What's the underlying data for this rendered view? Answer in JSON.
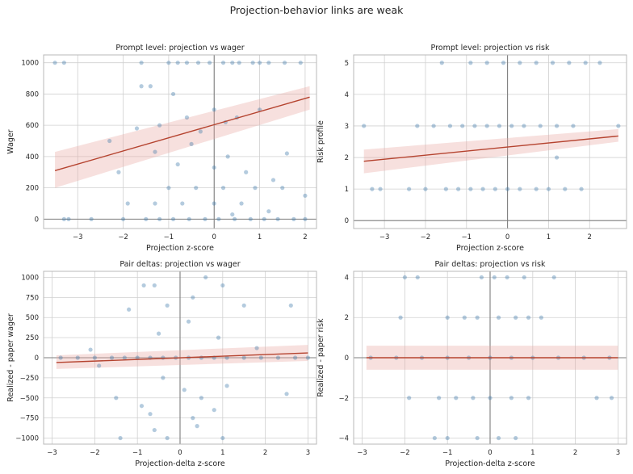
{
  "figure": {
    "title": "Projection-behavior links are weak",
    "colors": {
      "points": "#3a77a8",
      "fit_line": "#b5432f",
      "ci_band": "#e8a7a0",
      "grid": "#d0d0d0",
      "zero_line": "#7f7f7f",
      "frame": "#b8b8b8"
    }
  },
  "chart_data": [
    {
      "type": "scatter",
      "title": "Prompt level: projection vs wager",
      "xlabel": "Projection z-score",
      "ylabel": "Wager",
      "xlim": [
        -3.75,
        2.25
      ],
      "ylim": [
        -60,
        1050
      ],
      "xticks": [
        -3,
        -2,
        -1,
        0,
        1,
        2
      ],
      "xtick_labels": [
        "−3",
        "−2",
        "−1",
        "0",
        "1",
        "2"
      ],
      "yticks": [
        0,
        200,
        400,
        600,
        800,
        1000
      ],
      "ytick_labels": [
        "0",
        "200",
        "400",
        "600",
        "800",
        "1000"
      ],
      "grid": true,
      "zero_lines": true,
      "fit": {
        "x": [
          -3.5,
          2.1
        ],
        "y": [
          310,
          780
        ],
        "ci_lower": [
          200,
          700
        ],
        "ci_upper": [
          430,
          850
        ]
      },
      "points": [
        {
          "x": -3.5,
          "y": 1000
        },
        {
          "x": -3.3,
          "y": 1000
        },
        {
          "x": -1.6,
          "y": 1000
        },
        {
          "x": -1.0,
          "y": 1000
        },
        {
          "x": -0.6,
          "y": 1000
        },
        {
          "x": -0.35,
          "y": 1000
        },
        {
          "x": -0.1,
          "y": 1000
        },
        {
          "x": 0.2,
          "y": 1000
        },
        {
          "x": 0.55,
          "y": 1000
        },
        {
          "x": 0.85,
          "y": 1000
        },
        {
          "x": 1.2,
          "y": 1000
        },
        {
          "x": 1.55,
          "y": 1000
        },
        {
          "x": 1.9,
          "y": 1000
        },
        {
          "x": -0.8,
          "y": 1000
        },
        {
          "x": 0.4,
          "y": 1000
        },
        {
          "x": 1.0,
          "y": 1000
        },
        {
          "x": -3.3,
          "y": 0
        },
        {
          "x": -3.2,
          "y": 0
        },
        {
          "x": -2.7,
          "y": 0
        },
        {
          "x": -2.0,
          "y": 0
        },
        {
          "x": -1.5,
          "y": 0
        },
        {
          "x": -1.2,
          "y": 0
        },
        {
          "x": -0.9,
          "y": 0
        },
        {
          "x": -0.55,
          "y": 0
        },
        {
          "x": -0.2,
          "y": 0
        },
        {
          "x": 0.1,
          "y": 0
        },
        {
          "x": 0.45,
          "y": 0
        },
        {
          "x": 0.8,
          "y": 0
        },
        {
          "x": 1.1,
          "y": 0
        },
        {
          "x": 1.4,
          "y": 0
        },
        {
          "x": 1.75,
          "y": 0
        },
        {
          "x": 2.0,
          "y": 0
        },
        {
          "x": -1.6,
          "y": 850
        },
        {
          "x": -1.4,
          "y": 850
        },
        {
          "x": -0.9,
          "y": 800
        },
        {
          "x": -1.7,
          "y": 580
        },
        {
          "x": -1.2,
          "y": 600
        },
        {
          "x": -0.6,
          "y": 650
        },
        {
          "x": 0.0,
          "y": 700
        },
        {
          "x": 0.5,
          "y": 650
        },
        {
          "x": 1.0,
          "y": 700
        },
        {
          "x": -0.3,
          "y": 560
        },
        {
          "x": 0.25,
          "y": 620
        },
        {
          "x": -2.3,
          "y": 500
        },
        {
          "x": -1.3,
          "y": 430
        },
        {
          "x": -0.5,
          "y": 480
        },
        {
          "x": 0.3,
          "y": 400
        },
        {
          "x": 1.6,
          "y": 420
        },
        {
          "x": -2.1,
          "y": 300
        },
        {
          "x": -0.8,
          "y": 350
        },
        {
          "x": 0.0,
          "y": 330
        },
        {
          "x": 0.7,
          "y": 300
        },
        {
          "x": 1.3,
          "y": 250
        },
        {
          "x": -1.0,
          "y": 200
        },
        {
          "x": -0.4,
          "y": 200
        },
        {
          "x": 0.2,
          "y": 200
        },
        {
          "x": 0.9,
          "y": 200
        },
        {
          "x": 1.5,
          "y": 200
        },
        {
          "x": 2.0,
          "y": 150
        },
        {
          "x": -1.9,
          "y": 100
        },
        {
          "x": -1.3,
          "y": 100
        },
        {
          "x": -0.7,
          "y": 100
        },
        {
          "x": 0.0,
          "y": 100
        },
        {
          "x": 0.6,
          "y": 100
        },
        {
          "x": 1.2,
          "y": 50
        },
        {
          "x": 0.4,
          "y": 30
        }
      ]
    },
    {
      "type": "scatter",
      "title": "Prompt level: projection vs risk",
      "xlabel": "Projection z-score",
      "ylabel": "Risk profile",
      "xlim": [
        -3.75,
        2.9
      ],
      "ylim": [
        -0.25,
        5.25
      ],
      "xticks": [
        -3,
        -2,
        -1,
        0,
        1,
        2
      ],
      "xtick_labels": [
        "−3",
        "−2",
        "−1",
        "0",
        "1",
        "2"
      ],
      "yticks": [
        0,
        1,
        2,
        3,
        4,
        5
      ],
      "ytick_labels": [
        "0",
        "1",
        "2",
        "3",
        "4",
        "5"
      ],
      "grid": true,
      "zero_lines": true,
      "fit": {
        "x": [
          -3.5,
          2.7
        ],
        "y": [
          1.88,
          2.68
        ],
        "ci_lower": [
          1.5,
          2.5
        ],
        "ci_upper": [
          2.25,
          2.9
        ]
      },
      "points": [
        {
          "x": -1.6,
          "y": 5
        },
        {
          "x": -0.9,
          "y": 5
        },
        {
          "x": -0.5,
          "y": 5
        },
        {
          "x": -0.1,
          "y": 5
        },
        {
          "x": 0.3,
          "y": 5
        },
        {
          "x": 0.7,
          "y": 5
        },
        {
          "x": 1.1,
          "y": 5
        },
        {
          "x": 1.5,
          "y": 5
        },
        {
          "x": 1.9,
          "y": 5
        },
        {
          "x": 2.25,
          "y": 5
        },
        {
          "x": -3.5,
          "y": 3
        },
        {
          "x": -2.2,
          "y": 3
        },
        {
          "x": -1.8,
          "y": 3
        },
        {
          "x": -1.4,
          "y": 3
        },
        {
          "x": -1.1,
          "y": 3
        },
        {
          "x": -0.8,
          "y": 3
        },
        {
          "x": -0.5,
          "y": 3
        },
        {
          "x": -0.2,
          "y": 3
        },
        {
          "x": 0.1,
          "y": 3
        },
        {
          "x": 0.4,
          "y": 3
        },
        {
          "x": 0.8,
          "y": 3
        },
        {
          "x": 1.2,
          "y": 3
        },
        {
          "x": 1.6,
          "y": 3
        },
        {
          "x": 2.7,
          "y": 3
        },
        {
          "x": 1.2,
          "y": 2
        },
        {
          "x": -3.3,
          "y": 1
        },
        {
          "x": -3.1,
          "y": 1
        },
        {
          "x": -2.4,
          "y": 1
        },
        {
          "x": -2.0,
          "y": 1
        },
        {
          "x": -1.5,
          "y": 1
        },
        {
          "x": -1.2,
          "y": 1
        },
        {
          "x": -0.9,
          "y": 1
        },
        {
          "x": -0.6,
          "y": 1
        },
        {
          "x": -0.3,
          "y": 1
        },
        {
          "x": 0.0,
          "y": 1
        },
        {
          "x": 0.3,
          "y": 1
        },
        {
          "x": 0.7,
          "y": 1
        },
        {
          "x": 1.0,
          "y": 1
        },
        {
          "x": 1.4,
          "y": 1
        },
        {
          "x": 1.8,
          "y": 1
        }
      ]
    },
    {
      "type": "scatter",
      "title": "Pair deltas: projection vs wager",
      "xlabel": "Projection-delta z-score",
      "ylabel": "Realized - paper wager",
      "xlim": [
        -3.2,
        3.2
      ],
      "ylim": [
        -1075,
        1075
      ],
      "xticks": [
        -3,
        -2,
        -1,
        0,
        1,
        2,
        3
      ],
      "xtick_labels": [
        "−3",
        "−2",
        "−1",
        "0",
        "1",
        "2",
        "3"
      ],
      "yticks": [
        -1000,
        -750,
        -500,
        -250,
        0,
        250,
        500,
        750,
        1000
      ],
      "ytick_labels": [
        "−1000",
        "−750",
        "−500",
        "−250",
        "0",
        "250",
        "500",
        "750",
        "1000"
      ],
      "grid": true,
      "zero_lines": true,
      "fit": {
        "x": [
          -2.9,
          3.0
        ],
        "y": [
          -60,
          60
        ],
        "ci_lower": [
          -140,
          -40
        ],
        "ci_upper": [
          30,
          160
        ]
      },
      "points": [
        {
          "x": -2.8,
          "y": 0
        },
        {
          "x": -2.4,
          "y": 0
        },
        {
          "x": -2.0,
          "y": 0
        },
        {
          "x": -1.6,
          "y": 0
        },
        {
          "x": -1.3,
          "y": 0
        },
        {
          "x": -1.0,
          "y": 0
        },
        {
          "x": -0.7,
          "y": 0
        },
        {
          "x": -0.4,
          "y": 0
        },
        {
          "x": -0.1,
          "y": 0
        },
        {
          "x": 0.2,
          "y": 0
        },
        {
          "x": 0.5,
          "y": 0
        },
        {
          "x": 0.8,
          "y": 0
        },
        {
          "x": 1.1,
          "y": 0
        },
        {
          "x": 1.5,
          "y": 0
        },
        {
          "x": 1.9,
          "y": 0
        },
        {
          "x": 2.3,
          "y": 0
        },
        {
          "x": 2.7,
          "y": 0
        },
        {
          "x": 3.0,
          "y": 0
        },
        {
          "x": -2.1,
          "y": 100
        },
        {
          "x": -1.2,
          "y": 600
        },
        {
          "x": -0.85,
          "y": 900
        },
        {
          "x": -0.6,
          "y": 900
        },
        {
          "x": 0.6,
          "y": 1000
        },
        {
          "x": 1.0,
          "y": 900
        },
        {
          "x": 0.3,
          "y": 750
        },
        {
          "x": -0.3,
          "y": 650
        },
        {
          "x": 1.5,
          "y": 650
        },
        {
          "x": 2.6,
          "y": 650
        },
        {
          "x": 0.2,
          "y": 450
        },
        {
          "x": -0.5,
          "y": 300
        },
        {
          "x": 0.9,
          "y": 250
        },
        {
          "x": 1.8,
          "y": 120
        },
        {
          "x": -1.9,
          "y": -100
        },
        {
          "x": -1.5,
          "y": -500
        },
        {
          "x": -0.9,
          "y": -600
        },
        {
          "x": -0.4,
          "y": -250
        },
        {
          "x": 0.1,
          "y": -400
        },
        {
          "x": 0.5,
          "y": -500
        },
        {
          "x": 1.1,
          "y": -350
        },
        {
          "x": 2.5,
          "y": -450
        },
        {
          "x": -0.7,
          "y": -700
        },
        {
          "x": 0.3,
          "y": -750
        },
        {
          "x": 0.8,
          "y": -650
        },
        {
          "x": -0.6,
          "y": -900
        },
        {
          "x": -0.3,
          "y": -1000
        },
        {
          "x": -1.4,
          "y": -1000
        },
        {
          "x": 1.0,
          "y": -1000
        },
        {
          "x": 0.4,
          "y": -850
        }
      ]
    },
    {
      "type": "scatter",
      "title": "Pair deltas: projection vs risk",
      "xlabel": "Projection-delta z-score",
      "ylabel": "Realized - paper risk",
      "xlim": [
        -3.2,
        3.2
      ],
      "ylim": [
        -4.3,
        4.3
      ],
      "xticks": [
        -3,
        -2,
        -1,
        0,
        1,
        2,
        3
      ],
      "xtick_labels": [
        "−3",
        "−2",
        "−1",
        "0",
        "1",
        "2",
        "3"
      ],
      "yticks": [
        -4,
        -2,
        0,
        2,
        4
      ],
      "ytick_labels": [
        "−4",
        "−2",
        "0",
        "2",
        "4"
      ],
      "grid": true,
      "zero_lines": true,
      "fit": {
        "x": [
          -2.9,
          3.0
        ],
        "y": [
          0.0,
          0.0
        ],
        "ci_lower": [
          -0.6,
          -0.6
        ],
        "ci_upper": [
          0.6,
          0.6
        ]
      },
      "points": [
        {
          "x": -2.0,
          "y": 4
        },
        {
          "x": -1.7,
          "y": 4
        },
        {
          "x": -0.2,
          "y": 4
        },
        {
          "x": 0.1,
          "y": 4
        },
        {
          "x": 0.4,
          "y": 4
        },
        {
          "x": 0.8,
          "y": 4
        },
        {
          "x": 1.5,
          "y": 4
        },
        {
          "x": -2.1,
          "y": 2
        },
        {
          "x": -1.0,
          "y": 2
        },
        {
          "x": -0.6,
          "y": 2
        },
        {
          "x": -0.3,
          "y": 2
        },
        {
          "x": 0.2,
          "y": 2
        },
        {
          "x": 0.6,
          "y": 2
        },
        {
          "x": 0.9,
          "y": 2
        },
        {
          "x": 1.2,
          "y": 2
        },
        {
          "x": -2.8,
          "y": 0
        },
        {
          "x": -2.2,
          "y": 0
        },
        {
          "x": -1.6,
          "y": 0
        },
        {
          "x": -1.0,
          "y": 0
        },
        {
          "x": -0.5,
          "y": 0
        },
        {
          "x": 0.0,
          "y": 0
        },
        {
          "x": 0.5,
          "y": 0
        },
        {
          "x": 1.0,
          "y": 0
        },
        {
          "x": 1.6,
          "y": 0
        },
        {
          "x": 2.2,
          "y": 0
        },
        {
          "x": 2.8,
          "y": 0
        },
        {
          "x": -1.9,
          "y": -2
        },
        {
          "x": -1.2,
          "y": -2
        },
        {
          "x": -0.8,
          "y": -2
        },
        {
          "x": -0.4,
          "y": -2
        },
        {
          "x": 0.0,
          "y": -2
        },
        {
          "x": 0.5,
          "y": -2
        },
        {
          "x": 0.9,
          "y": -2
        },
        {
          "x": 2.5,
          "y": -2
        },
        {
          "x": 2.85,
          "y": -2
        },
        {
          "x": -1.3,
          "y": -4
        },
        {
          "x": -1.0,
          "y": -4
        },
        {
          "x": -0.3,
          "y": -4
        },
        {
          "x": 0.2,
          "y": -4
        },
        {
          "x": 0.6,
          "y": -4
        }
      ]
    }
  ]
}
